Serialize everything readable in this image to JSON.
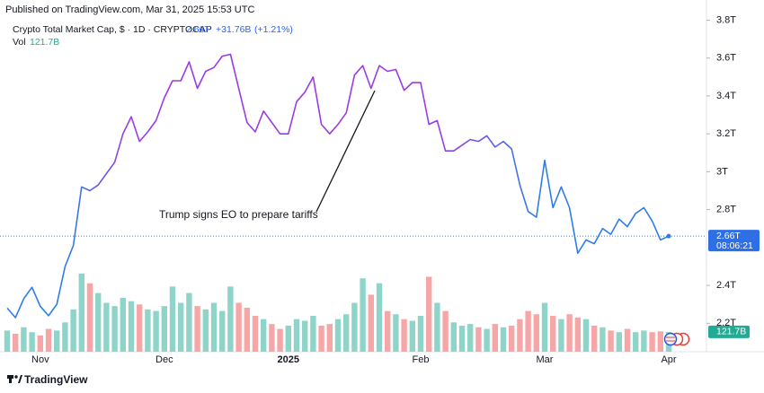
{
  "chart_data": {
    "type": "line",
    "published": "Published on TradingView.com, Mar 31, 2025 15:53 UTC",
    "title": "Crypto Total Market Cap, $ · 1D · CRYPTOCAP",
    "last_price_label": "2.66T",
    "change_label": "+31.76B",
    "change_pct_label": "(+1.21%)",
    "volume_title": "Vol",
    "last_volume_label": "121.7B",
    "countdown": "08:06:21",
    "annotation": "Trump signs EO to prepare tariffs",
    "brand": "TradingView",
    "categories": [
      null,
      null,
      null,
      null,
      "Nov",
      null,
      null,
      null,
      null,
      null,
      null,
      null,
      null,
      null,
      null,
      null,
      null,
      null,
      null,
      "Dec",
      null,
      null,
      null,
      null,
      null,
      null,
      null,
      null,
      null,
      null,
      null,
      null,
      null,
      null,
      "2025",
      null,
      null,
      null,
      null,
      null,
      null,
      null,
      null,
      null,
      null,
      null,
      null,
      null,
      null,
      null,
      "Feb",
      null,
      null,
      null,
      null,
      null,
      null,
      null,
      null,
      null,
      null,
      null,
      null,
      null,
      null,
      "Mar",
      null,
      null,
      null,
      null,
      null,
      null,
      null,
      null,
      null,
      null,
      null,
      null,
      null,
      null,
      "Apr"
    ],
    "values": [
      2.28,
      2.23,
      2.33,
      2.39,
      2.29,
      2.24,
      2.3,
      2.5,
      2.61,
      2.92,
      2.9,
      2.93,
      2.99,
      3.05,
      3.2,
      3.29,
      3.16,
      3.21,
      3.27,
      3.39,
      3.48,
      3.48,
      3.58,
      3.44,
      3.53,
      3.55,
      3.61,
      3.62,
      3.44,
      3.26,
      3.21,
      3.32,
      3.26,
      3.2,
      3.2,
      3.37,
      3.42,
      3.5,
      3.25,
      3.2,
      3.25,
      3.31,
      3.51,
      3.56,
      3.44,
      3.56,
      3.53,
      3.54,
      3.43,
      3.47,
      3.47,
      3.25,
      3.27,
      3.11,
      3.11,
      3.14,
      3.17,
      3.16,
      3.19,
      3.13,
      3.16,
      3.12,
      2.93,
      2.79,
      2.76,
      3.06,
      2.81,
      2.92,
      2.81,
      2.57,
      2.64,
      2.62,
      2.7,
      2.67,
      2.75,
      2.71,
      2.78,
      2.81,
      2.74,
      2.64,
      2.66
    ],
    "volume": [
      130,
      110,
      150,
      120,
      100,
      140,
      130,
      180,
      260,
      480,
      420,
      360,
      300,
      280,
      330,
      310,
      290,
      260,
      250,
      280,
      400,
      300,
      360,
      280,
      260,
      300,
      250,
      400,
      300,
      270,
      220,
      200,
      170,
      140,
      160,
      200,
      190,
      220,
      160,
      170,
      200,
      230,
      300,
      450,
      350,
      420,
      250,
      230,
      200,
      190,
      220,
      460,
      300,
      250,
      180,
      160,
      170,
      150,
      140,
      170,
      150,
      160,
      200,
      250,
      230,
      300,
      220,
      200,
      230,
      210,
      200,
      160,
      150,
      130,
      120,
      140,
      120,
      130,
      120,
      125,
      121.7
    ],
    "ylim": [
      2.05,
      3.84
    ],
    "yticks": [
      {
        "value": 2.2,
        "label": "2.2T"
      },
      {
        "value": 2.4,
        "label": "2.4T"
      },
      {
        "value": 2.8,
        "label": "2.8T"
      },
      {
        "value": 3,
        "label": "3T"
      },
      {
        "value": 3.2,
        "label": "3.2T"
      },
      {
        "value": 3.4,
        "label": "3.4T"
      },
      {
        "value": 3.6,
        "label": "3.6T"
      },
      {
        "value": 3.8,
        "label": "3.8T"
      }
    ],
    "volume_ylim": [
      0,
      600
    ],
    "line_colors": [
      "#2f7de8",
      "#9c3be6"
    ],
    "up_color": "#8fd4c9",
    "down_color": "#f6a6a6",
    "grid": false
  }
}
